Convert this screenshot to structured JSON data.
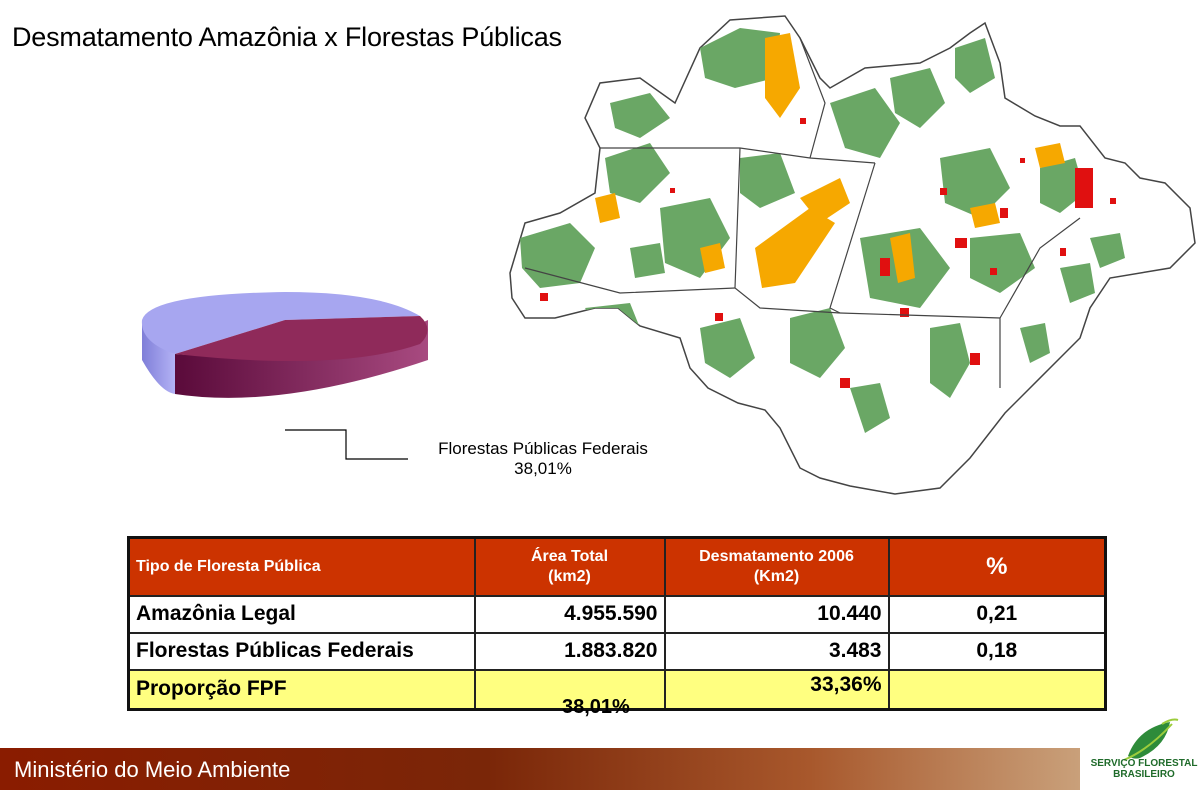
{
  "slide": {
    "title": "Desmatamento Amazônia x Florestas Públicas"
  },
  "pie": {
    "label_line1": "Florestas Públicas Federais",
    "label_line2": "38,01%",
    "share": 0.3801,
    "colors": {
      "federal": "#8f2a5a",
      "other": "#a7a6f0"
    }
  },
  "map": {
    "colors": {
      "public_forest": "#6aa765",
      "deforestation": "#e01010",
      "other_forest": "#f6a800",
      "border": "#444444"
    }
  },
  "table": {
    "headers": [
      "Tipo de Floresta Pública",
      "Área Total\n(km2)",
      "Desmatamento 2006\n(Km2)",
      "%"
    ],
    "header_c1_l1": "Área Total",
    "header_c1_l2": "(km2)",
    "header_c2_l1": "Desmatamento 2006",
    "header_c2_l2": "(Km2)",
    "rows": [
      {
        "tipo": "Amazônia Legal",
        "area": "4.955.590",
        "desmat": "10.440",
        "pct": "0,21"
      },
      {
        "tipo": "Florestas Públicas Federais",
        "area": "1.883.820",
        "desmat": "3.483",
        "pct": "0,18"
      }
    ],
    "proportion": {
      "tipo": "Proporção FPF",
      "area": "38,01%",
      "desmat": "33,36%"
    },
    "header_color": "#cc3300",
    "highlight_color": "#ffff80"
  },
  "footer": {
    "text": "Ministério do Meio Ambiente"
  },
  "logo": {
    "line1": "SERVIÇO FLORESTAL",
    "line2": "BRASILEIRO",
    "icon": "leaf-icon"
  }
}
